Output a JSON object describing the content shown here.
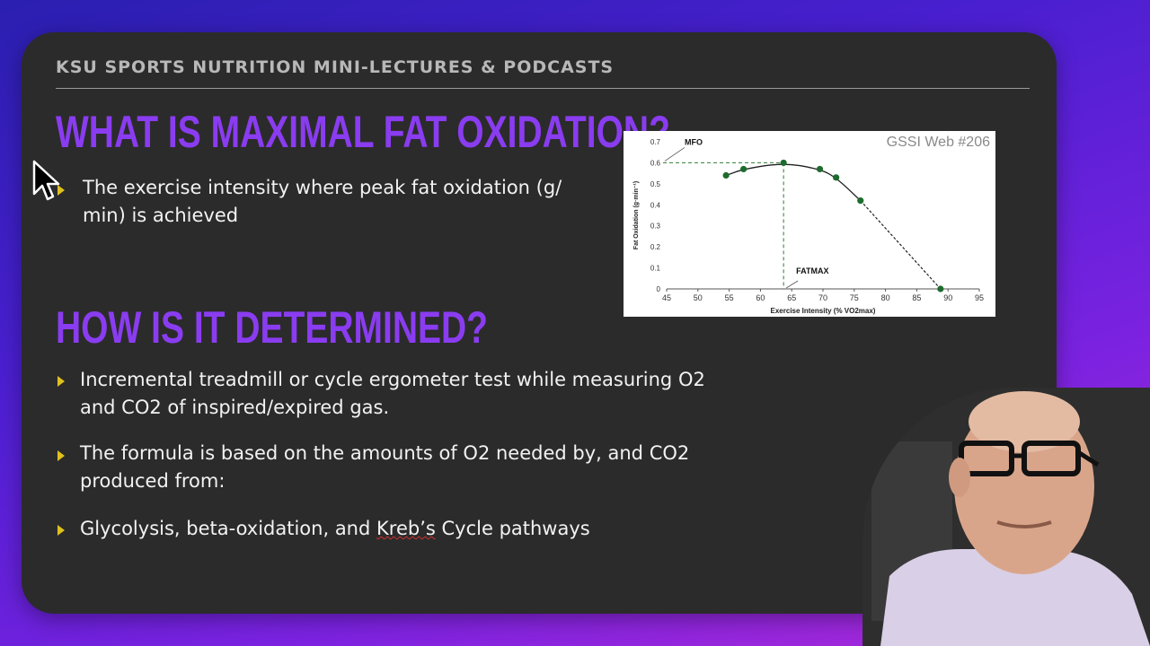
{
  "header": {
    "text": "KSU SPORTS NUTRITION MINI-LECTURES & PODCASTS"
  },
  "titles": {
    "what": "WHAT IS MAXIMAL FAT OXIDATION?",
    "how": "HOW IS IT DETERMINED?"
  },
  "bullets": {
    "definition": "The exercise intensity where peak fat oxidation (g/ min) is achieved",
    "items": [
      "Incremental treadmill or cycle ergometer test while measuring O2 and CO2 of inspired/expired gas.",
      "The formula is based on the amounts of O2 needed by, and CO2 produced from:",
      {
        "before": "Glycolysis, beta-oxidation, and ",
        "underlined": "Kreb’s",
        "after": " Cycle pathways"
      }
    ]
  },
  "chart_overlay": {
    "label": "GSSI Web #206"
  },
  "chart_data": {
    "type": "scatter",
    "xlabel": "Exercise Intensity (% VO2max)",
    "ylabel": "Fat Oxidation (g·min⁻¹)",
    "xlim": [
      45,
      95
    ],
    "ylim": [
      0,
      0.7
    ],
    "xticks": [
      45,
      50,
      55,
      60,
      65,
      70,
      75,
      80,
      85,
      90,
      95
    ],
    "yticks": [
      0,
      0.1,
      0.2,
      0.3,
      0.4,
      0.5,
      0.6,
      0.7
    ],
    "points": [
      {
        "x": 54.5,
        "y": 0.54
      },
      {
        "x": 57.3,
        "y": 0.57
      },
      {
        "x": 63.7,
        "y": 0.6
      },
      {
        "x": 69.5,
        "y": 0.57
      },
      {
        "x": 72.1,
        "y": 0.53
      },
      {
        "x": 76.0,
        "y": 0.42
      },
      {
        "x": 88.8,
        "y": 0.0
      }
    ],
    "annotations": [
      {
        "text": "MFO",
        "x": 45,
        "y": 0.6
      },
      {
        "text": "FATMAX",
        "x": 64,
        "y": 0.0
      }
    ],
    "colors": {
      "points": "#1e6b2e",
      "curve": "#222222",
      "guide": "#2e7d32"
    }
  }
}
